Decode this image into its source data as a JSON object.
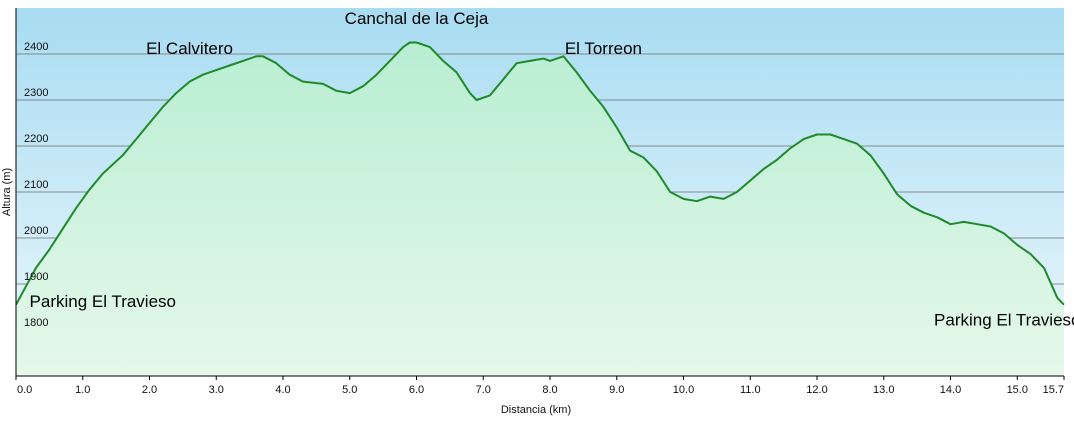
{
  "chart_data": {
    "type": "area",
    "title": "",
    "xlabel": "Distancia  (km)",
    "ylabel": "Altura (m)",
    "xlim": [
      0,
      15.7
    ],
    "ylim": [
      1700,
      2500
    ],
    "grid": true,
    "legend": "none",
    "x_ticks": [
      "0.0",
      "1.0",
      "2.0",
      "3.0",
      "4.0",
      "5.0",
      "6.0",
      "7.0",
      "8.0",
      "9.0",
      "10.0",
      "11.0",
      "12.0",
      "13.0",
      "14.0",
      "15.0",
      "15.7"
    ],
    "y_ticks": [
      "1800",
      "1900",
      "2000",
      "2100",
      "2200",
      "2300",
      "2400"
    ],
    "colors": {
      "line": "#1f8a2a",
      "fill_top": "#b8eed2",
      "fill_bottom": "#e6f8ea",
      "sky_top": "#a8dcf2",
      "sky_bottom": "#ecf8fc",
      "grid": "#6d6d6d"
    },
    "series": [
      {
        "x": [
          0.0,
          0.15,
          0.3,
          0.5,
          0.7,
          0.9,
          1.1,
          1.3,
          1.6,
          1.8,
          2.0,
          2.2,
          2.4,
          2.6,
          2.8,
          3.0,
          3.2,
          3.4,
          3.6,
          3.7,
          3.9,
          4.1,
          4.3,
          4.6,
          4.8,
          5.0,
          5.2,
          5.4,
          5.6,
          5.8,
          5.9,
          6.0,
          6.2,
          6.4,
          6.6,
          6.8,
          6.9,
          7.1,
          7.3,
          7.5,
          7.7,
          7.9,
          8.0,
          8.2,
          8.4,
          8.6,
          8.8,
          9.0,
          9.2,
          9.4,
          9.6,
          9.8,
          10.0,
          10.2,
          10.4,
          10.6,
          10.8,
          11.0,
          11.2,
          11.4,
          11.6,
          11.8,
          12.0,
          12.2,
          12.4,
          12.6,
          12.8,
          13.0,
          13.2,
          13.4,
          13.6,
          13.8,
          14.0,
          14.2,
          14.4,
          14.6,
          14.8,
          15.0,
          15.2,
          15.4,
          15.6,
          15.7
        ],
        "y": [
          1855,
          1895,
          1935,
          1975,
          2020,
          2065,
          2105,
          2140,
          2180,
          2215,
          2250,
          2285,
          2315,
          2340,
          2355,
          2365,
          2375,
          2385,
          2395,
          2395,
          2380,
          2355,
          2340,
          2335,
          2320,
          2315,
          2330,
          2355,
          2385,
          2415,
          2425,
          2425,
          2415,
          2385,
          2360,
          2315,
          2300,
          2310,
          2345,
          2380,
          2385,
          2390,
          2385,
          2395,
          2360,
          2320,
          2285,
          2240,
          2190,
          2175,
          2145,
          2100,
          2085,
          2080,
          2090,
          2085,
          2100,
          2125,
          2150,
          2170,
          2195,
          2215,
          2225,
          2225,
          2215,
          2205,
          2180,
          2140,
          2095,
          2070,
          2055,
          2045,
          2030,
          2035,
          2030,
          2025,
          2010,
          1985,
          1965,
          1935,
          1870,
          1855
        ]
      }
    ],
    "annotations": [
      {
        "text": "El Calvitero",
        "x": 2.6,
        "y": 2400
      },
      {
        "text": "Canchal de la Ceja",
        "x": 6.0,
        "y": 2465
      },
      {
        "text": "El Torreon",
        "x": 8.8,
        "y": 2400
      },
      {
        "text": "Parking El Travieso",
        "x": 1.3,
        "y": 1850
      },
      {
        "text": "Parking El Travieso",
        "x": 14.85,
        "y": 1810
      }
    ]
  }
}
